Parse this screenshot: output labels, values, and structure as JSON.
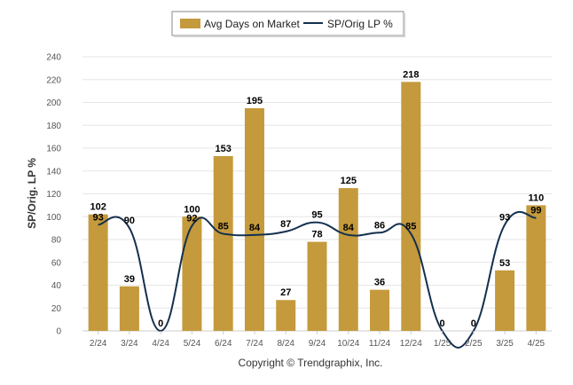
{
  "chart_data": {
    "type": "bar",
    "categories": [
      "2/24",
      "3/24",
      "4/24",
      "5/24",
      "6/24",
      "7/24",
      "8/24",
      "9/24",
      "10/24",
      "11/24",
      "12/24",
      "1/25",
      "2/25",
      "3/25",
      "4/25"
    ],
    "series": [
      {
        "name": "Avg Days on Market",
        "type": "bar",
        "values": [
          102,
          39,
          0,
          100,
          153,
          195,
          27,
          78,
          125,
          36,
          218,
          0,
          0,
          53,
          110
        ],
        "labels": [
          "102",
          "39",
          "0",
          "100",
          "153",
          "195",
          "27",
          "78",
          "125",
          "36",
          "218",
          "0",
          "0",
          "53",
          "110"
        ],
        "color": "#C49A3C"
      },
      {
        "name": "SP/Orig LP %",
        "type": "line",
        "values": [
          93,
          90,
          0,
          92,
          85,
          84,
          87,
          95,
          84,
          86,
          85,
          0,
          0,
          93,
          99
        ],
        "labels": [
          "93",
          "90",
          "",
          "92",
          "85",
          "84",
          "87",
          "95",
          "84",
          "86",
          "85",
          "",
          "",
          "93",
          "99"
        ],
        "color": "#14304F"
      }
    ],
    "ylabel": "SP/Orig. LP %",
    "ylim": [
      0,
      240
    ],
    "yticks": [
      "0",
      "20",
      "40",
      "60",
      "80",
      "100",
      "120",
      "140",
      "160",
      "180",
      "200",
      "220",
      "240"
    ],
    "grid": true,
    "legend_position": "top-center"
  },
  "footer": {
    "copyright": "Copyright © Trendgraphix, Inc."
  }
}
